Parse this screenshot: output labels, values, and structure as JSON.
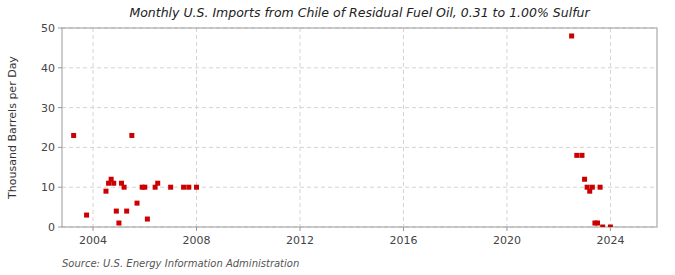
{
  "chart_data": {
    "type": "scatter",
    "title": "Monthly U.S. Imports from Chile of Residual Fuel Oil, 0.31 to 1.00% Sulfur",
    "ylabel": "Thousand Barrels per Day",
    "source": "Source: U.S. Energy Information Administration",
    "color": "#cc0000",
    "marker": "square",
    "grid": true,
    "xlim": [
      2002.8,
      2025.8
    ],
    "ylim": [
      0,
      50
    ],
    "xticks": [
      2004,
      2008,
      2012,
      2016,
      2020,
      2024
    ],
    "yticks": [
      0,
      10,
      20,
      30,
      40,
      50
    ],
    "x": [
      2003.25,
      2003.75,
      2004.5,
      2004.6,
      2004.7,
      2004.8,
      2004.9,
      2005.0,
      2005.1,
      2005.2,
      2005.3,
      2005.5,
      2005.7,
      2005.9,
      2006.0,
      2006.1,
      2006.4,
      2006.5,
      2007.0,
      2007.5,
      2007.7,
      2008.0,
      2022.5,
      2022.7,
      2022.9,
      2023.0,
      2023.1,
      2023.2,
      2023.3,
      2023.4,
      2023.5,
      2023.6,
      2023.7,
      2024.0
    ],
    "values": [
      23,
      3,
      9,
      11,
      12,
      11,
      4,
      1,
      11,
      10,
      4,
      23,
      6,
      10,
      10,
      2,
      10,
      11,
      10,
      10,
      10,
      10,
      48,
      18,
      18,
      12,
      10,
      9,
      10,
      1,
      1,
      10,
      0,
      0
    ]
  }
}
